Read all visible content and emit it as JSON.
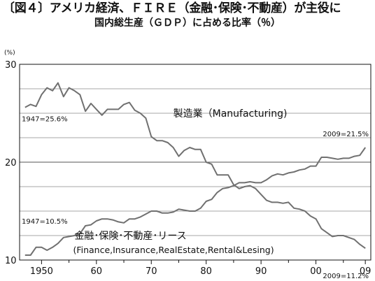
{
  "header": {
    "title": "〔図４〕アメリカ経済、ＦＩＲＥ（金融･保険･不動産）が主役に",
    "subtitle": "国内総生産（ＧＤＰ）に占める比率（％）"
  },
  "chart_data": {
    "type": "line",
    "title": "〔図４〕アメリカ経済、ＦＩＲＥ（金融･保険･不動産）が主役に",
    "subtitle": "国内総生産（ＧＤＰ）に占める比率（％）",
    "unit_label": "(%)",
    "xlim": [
      1946,
      2010
    ],
    "ylim": [
      10,
      30
    ],
    "y_ticks": [
      {
        "value": 10,
        "label": "10"
      },
      {
        "value": 20,
        "label": "20"
      },
      {
        "value": 30,
        "label": "30"
      }
    ],
    "y_gridlines": [
      10,
      12.5,
      15,
      17.5,
      20,
      22.5,
      25,
      27.5,
      30
    ],
    "x_ticks": [
      {
        "value": 1950,
        "label": "1950"
      },
      {
        "value": 1960,
        "label": "60"
      },
      {
        "value": 1970,
        "label": "70"
      },
      {
        "value": 1980,
        "label": "80"
      },
      {
        "value": 1990,
        "label": "90"
      },
      {
        "value": 2000,
        "label": "00"
      },
      {
        "value": 2009,
        "label": "09"
      }
    ],
    "x_minor_ticks": [
      1955,
      1965,
      1975,
      1985,
      1995,
      2005
    ],
    "grid": true,
    "legend": "none",
    "series": [
      {
        "name": "製造業（Manufacturing)",
        "color": "#707070",
        "label_pos": [
          1974,
          25.0
        ],
        "x": [
          1947,
          1948,
          1949,
          1950,
          1951,
          1952,
          1953,
          1954,
          1955,
          1956,
          1957,
          1958,
          1959,
          1960,
          1961,
          1962,
          1963,
          1964,
          1965,
          1966,
          1967,
          1968,
          1969,
          1970,
          1971,
          1972,
          1973,
          1974,
          1975,
          1976,
          1977,
          1978,
          1979,
          1980,
          1981,
          1982,
          1983,
          1984,
          1985,
          1986,
          1987,
          1988,
          1989,
          1990,
          1991,
          1992,
          1993,
          1994,
          1995,
          1996,
          1997,
          1998,
          1999,
          2000,
          2001,
          2002,
          2003,
          2004,
          2005,
          2006,
          2007,
          2008,
          2009
        ],
        "values": [
          25.6,
          25.9,
          25.7,
          26.9,
          27.6,
          27.3,
          28.1,
          26.7,
          27.6,
          27.3,
          26.9,
          25.2,
          26.0,
          25.4,
          24.8,
          25.4,
          25.4,
          25.4,
          25.9,
          26.1,
          25.3,
          25.0,
          24.5,
          22.6,
          22.2,
          22.2,
          22.0,
          21.5,
          20.6,
          21.2,
          21.5,
          21.3,
          21.3,
          20.0,
          19.8,
          18.7,
          18.7,
          18.7,
          17.7,
          17.3,
          17.5,
          17.6,
          17.3,
          16.7,
          16.1,
          15.9,
          15.9,
          15.8,
          15.9,
          15.3,
          15.2,
          15.0,
          14.5,
          14.2,
          13.2,
          12.8,
          12.4,
          12.5,
          12.5,
          12.3,
          12.1,
          11.6,
          11.2
        ],
        "annotations": [
          {
            "year": 1947,
            "text": "1947=25.6%"
          },
          {
            "year": 2009,
            "text": "2009=11.2%"
          }
        ]
      },
      {
        "name": "金融･保険･不動産･リース",
        "name_sub": "(Finance,Insurance,RealEstate,Rental&Lesing)",
        "color": "#707070",
        "label_pos": [
          1956,
          12.5
        ],
        "x": [
          1947,
          1948,
          1949,
          1950,
          1951,
          1952,
          1953,
          1954,
          1955,
          1956,
          1957,
          1958,
          1959,
          1960,
          1961,
          1962,
          1963,
          1964,
          1965,
          1966,
          1967,
          1968,
          1969,
          1970,
          1971,
          1972,
          1973,
          1974,
          1975,
          1976,
          1977,
          1978,
          1979,
          1980,
          1981,
          1982,
          1983,
          1984,
          1985,
          1986,
          1987,
          1988,
          1989,
          1990,
          1991,
          1992,
          1993,
          1994,
          1995,
          1996,
          1997,
          1998,
          1999,
          2000,
          2001,
          2002,
          2003,
          2004,
          2005,
          2006,
          2007,
          2008,
          2009
        ],
        "values": [
          10.5,
          10.5,
          11.3,
          11.3,
          11.0,
          11.3,
          11.7,
          12.3,
          12.4,
          12.5,
          12.7,
          13.5,
          13.6,
          14.0,
          14.2,
          14.2,
          14.1,
          13.9,
          13.8,
          14.2,
          14.2,
          14.4,
          14.7,
          15.0,
          15.0,
          14.8,
          14.8,
          14.9,
          15.2,
          15.1,
          15.0,
          15.0,
          15.3,
          16.0,
          16.2,
          16.9,
          17.3,
          17.4,
          17.6,
          17.9,
          17.9,
          18.0,
          17.9,
          17.9,
          18.2,
          18.6,
          18.8,
          18.7,
          18.9,
          19.0,
          19.2,
          19.3,
          19.6,
          19.6,
          20.5,
          20.5,
          20.4,
          20.3,
          20.4,
          20.4,
          20.6,
          20.7,
          21.5
        ],
        "annotations": [
          {
            "year": 1947,
            "text": "1947=10.5%"
          },
          {
            "year": 2009,
            "text": "2009=21.5%"
          }
        ]
      }
    ]
  }
}
